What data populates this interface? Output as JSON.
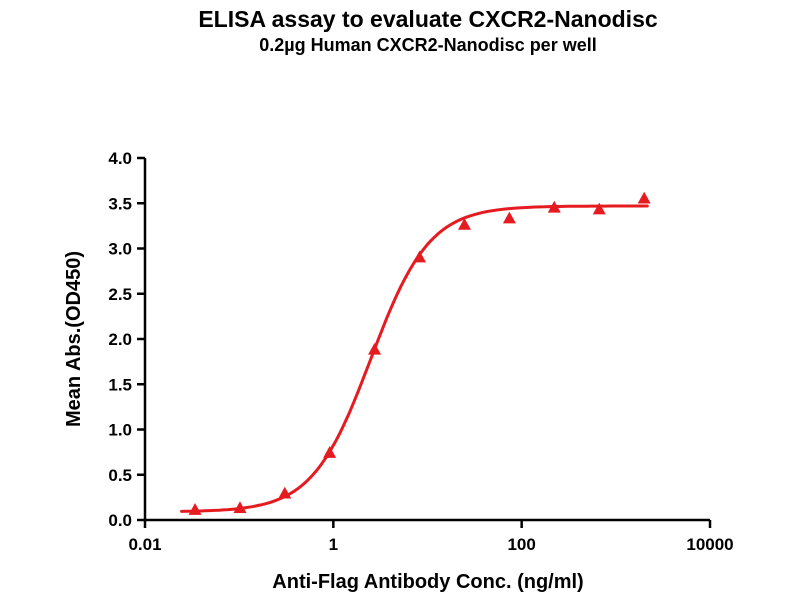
{
  "chart_data": {
    "type": "scatter",
    "title": "ELISA assay to evaluate CXCR2-Nanodisc",
    "subtitle": "0.2µg Human CXCR2-Nanodisc per well",
    "xlabel": "Anti-Flag Antibody Conc. (ng/ml)",
    "ylabel": "Mean Abs.(OD450)",
    "x_scale": "log",
    "xlim": [
      0.01,
      10000
    ],
    "ylim": [
      0.0,
      4.0
    ],
    "x_ticks": [
      "0.01",
      "1",
      "100",
      "10000"
    ],
    "y_ticks": [
      "0.0",
      "0.5",
      "1.0",
      "1.5",
      "2.0",
      "2.5",
      "3.0",
      "3.5",
      "4.0"
    ],
    "grid": false,
    "legend": "none",
    "marker_color": "#e51b20",
    "line_color": "#e51b20",
    "series": [
      {
        "name": "Human CXCR2-Nanodisc",
        "marker": "filled-triangle",
        "x": [
          0.034,
          0.102,
          0.305,
          0.914,
          2.74,
          8.23,
          24.7,
          74.1,
          222,
          667,
          2000
        ],
        "y": [
          0.11,
          0.13,
          0.29,
          0.74,
          1.88,
          2.9,
          3.26,
          3.33,
          3.45,
          3.43,
          3.55
        ]
      }
    ],
    "fit": {
      "model": "4PL",
      "bottom": 0.09,
      "top": 3.47,
      "ec50": 2.5,
      "hill": 1.4
    }
  }
}
